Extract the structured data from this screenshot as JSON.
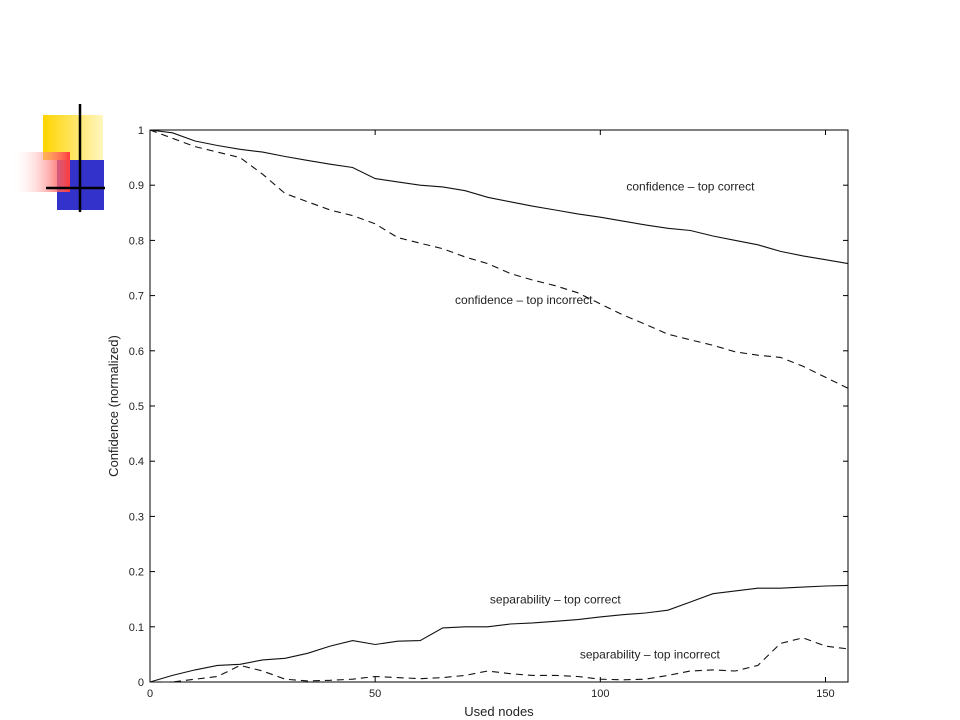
{
  "decoration": {
    "colors": [
      "#FFD400",
      "#3333CC",
      "#FF3B3B",
      "#000000"
    ]
  },
  "chart_data": {
    "type": "line",
    "title": "",
    "xlabel": "Used nodes",
    "ylabel": "Confidence (normalized)",
    "xlim": [
      0,
      155
    ],
    "ylim": [
      0,
      1
    ],
    "xticks": [
      0,
      50,
      100,
      150
    ],
    "xtick_labels": [
      "0",
      "50",
      "100",
      "150"
    ],
    "yticks": [
      0,
      0.1,
      0.2,
      0.3,
      0.4,
      0.5,
      0.6,
      0.7,
      0.8,
      0.9,
      1
    ],
    "ytick_labels": [
      "0",
      "0.1",
      "0.2",
      "0.3",
      "0.4",
      "0.5",
      "0.6",
      "0.7",
      "0.8",
      "0.9",
      "1"
    ],
    "grid": false,
    "legend": "none",
    "series": [
      {
        "name": "confidence – top correct",
        "style": "solid",
        "x": [
          0,
          5,
          10,
          15,
          20,
          25,
          30,
          35,
          40,
          45,
          50,
          55,
          60,
          65,
          70,
          75,
          80,
          85,
          90,
          95,
          100,
          105,
          110,
          115,
          120,
          125,
          130,
          135,
          140,
          145,
          150,
          155
        ],
        "y": [
          1.0,
          0.995,
          0.98,
          0.972,
          0.965,
          0.96,
          0.952,
          0.945,
          0.938,
          0.932,
          0.912,
          0.906,
          0.9,
          0.897,
          0.89,
          0.878,
          0.87,
          0.862,
          0.855,
          0.848,
          0.842,
          0.835,
          0.828,
          0.822,
          0.818,
          0.808,
          0.8,
          0.792,
          0.78,
          0.772,
          0.765,
          0.758
        ]
      },
      {
        "name": "confidence – top incorrect",
        "style": "dashed",
        "x": [
          0,
          5,
          10,
          15,
          20,
          25,
          30,
          35,
          40,
          45,
          50,
          55,
          60,
          65,
          70,
          75,
          80,
          85,
          90,
          95,
          100,
          105,
          110,
          115,
          120,
          125,
          130,
          135,
          140,
          145,
          150,
          155
        ],
        "y": [
          1.0,
          0.985,
          0.97,
          0.96,
          0.95,
          0.92,
          0.885,
          0.87,
          0.855,
          0.845,
          0.83,
          0.805,
          0.795,
          0.785,
          0.77,
          0.758,
          0.74,
          0.728,
          0.718,
          0.705,
          0.685,
          0.665,
          0.648,
          0.63,
          0.62,
          0.61,
          0.598,
          0.592,
          0.588,
          0.572,
          0.552,
          0.532
        ]
      },
      {
        "name": "separability – top correct",
        "style": "solid",
        "x": [
          0,
          5,
          10,
          15,
          20,
          25,
          30,
          35,
          40,
          45,
          50,
          55,
          60,
          65,
          70,
          75,
          80,
          85,
          90,
          95,
          100,
          105,
          110,
          115,
          120,
          125,
          130,
          135,
          140,
          145,
          150,
          155
        ],
        "y": [
          0.0,
          0.012,
          0.022,
          0.03,
          0.032,
          0.04,
          0.043,
          0.052,
          0.065,
          0.075,
          0.068,
          0.074,
          0.075,
          0.098,
          0.1,
          0.1,
          0.105,
          0.107,
          0.11,
          0.113,
          0.118,
          0.122,
          0.125,
          0.13,
          0.145,
          0.16,
          0.165,
          0.17,
          0.17,
          0.172,
          0.174,
          0.175
        ]
      },
      {
        "name": "separability – top incorrect",
        "style": "dashed",
        "x": [
          0,
          5,
          10,
          15,
          20,
          25,
          30,
          35,
          40,
          45,
          50,
          55,
          60,
          65,
          70,
          75,
          80,
          85,
          90,
          95,
          100,
          105,
          110,
          115,
          120,
          125,
          130,
          135,
          140,
          145,
          150,
          155
        ],
        "y": [
          0.0,
          0.0,
          0.005,
          0.01,
          0.03,
          0.02,
          0.005,
          0.002,
          0.003,
          0.005,
          0.01,
          0.008,
          0.006,
          0.008,
          0.012,
          0.02,
          0.015,
          0.012,
          0.012,
          0.01,
          0.005,
          0.004,
          0.005,
          0.012,
          0.02,
          0.022,
          0.02,
          0.03,
          0.07,
          0.08,
          0.065,
          0.06
        ]
      }
    ],
    "annotations": [
      {
        "text": "confidence – top correct",
        "x": 120,
        "y": 0.89
      },
      {
        "text": "confidence – top incorrect",
        "x": 83,
        "y": 0.685
      },
      {
        "text": "separability – top correct",
        "x": 90,
        "y": 0.142
      },
      {
        "text": "separability – top incorrect",
        "x": 111,
        "y": 0.043
      }
    ]
  }
}
